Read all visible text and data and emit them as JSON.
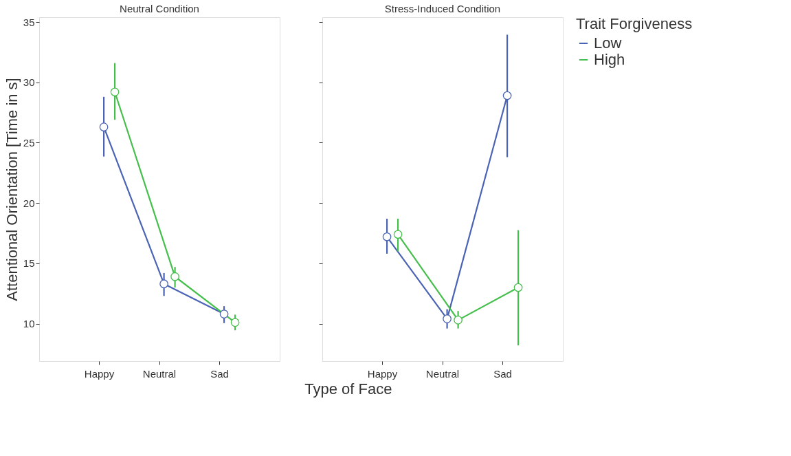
{
  "chart_data": [
    {
      "type": "line",
      "title": "Neutral Condition",
      "xlabel": "Type of Face",
      "ylabel": "Attentional Orientation [Time in s]",
      "categories": [
        "Happy",
        "Neutral",
        "Sad"
      ],
      "ylim": [
        6.9,
        35.4
      ],
      "yticks": [
        10,
        15,
        20,
        25,
        30,
        35
      ],
      "marker": "circle",
      "grid": false,
      "legend": "right",
      "legend_title": "Trait Forgiveness",
      "series": [
        {
          "name": "Low",
          "color": "#4a63b5",
          "values": [
            26.3,
            13.3,
            10.8
          ],
          "errors": [
            [
              23.85,
              28.8
            ],
            [
              12.3,
              14.2
            ],
            [
              10.05,
              11.45
            ]
          ]
        },
        {
          "name": "High",
          "color": "#45bf4b",
          "values": [
            29.2,
            13.9,
            10.1
          ],
          "errors": [
            [
              26.9,
              31.6
            ],
            [
              13.0,
              14.7
            ],
            [
              9.45,
              10.75
            ]
          ]
        }
      ]
    },
    {
      "type": "line",
      "title": "Stress-Induced Condition",
      "categories": [
        "Happy",
        "Neutral",
        "Sad"
      ],
      "ylim": [
        6.9,
        35.4
      ],
      "yticks": [
        10,
        15,
        20,
        25,
        30,
        35
      ],
      "tick_labels": "x",
      "marker": "circle",
      "grid": false,
      "series": [
        {
          "name": "Low",
          "color": "#4a63b5",
          "values": [
            17.2,
            10.4,
            28.9
          ],
          "errors": [
            [
              15.8,
              18.7
            ],
            [
              9.6,
              11.2
            ],
            [
              23.8,
              33.95
            ]
          ]
        },
        {
          "name": "High",
          "color": "#45bf4b",
          "values": [
            17.4,
            10.3,
            13.0
          ],
          "errors": [
            [
              16.0,
              18.7
            ],
            [
              9.6,
              11.05
            ],
            [
              8.2,
              17.75
            ]
          ]
        }
      ]
    }
  ]
}
